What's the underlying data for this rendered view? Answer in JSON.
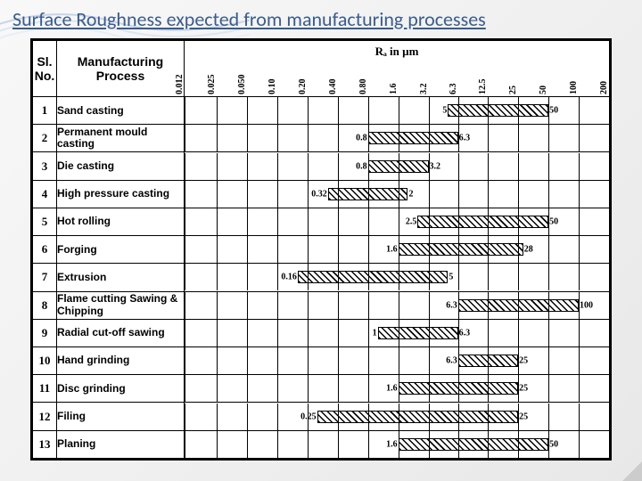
{
  "title": "Surface Roughness expected from manufacturing processes",
  "title_color": "#3b5c8c",
  "background_gradient": [
    "#f8f8f8",
    "#e8e8e8"
  ],
  "table": {
    "headers": {
      "sl": "Sl. No.",
      "process": "Manufacturing Process",
      "ra": "Rₐ in µm"
    },
    "ra_scale": {
      "type": "log",
      "ticks": [
        0.012,
        0.025,
        0.05,
        0.1,
        0.2,
        0.4,
        0.8,
        1.6,
        3.2,
        6.3,
        12.5,
        25,
        50,
        100,
        200
      ],
      "tick_labels": [
        "0.012",
        "0.025",
        "0.050",
        "0.10",
        "0.20",
        "0.40",
        "0.80",
        "1.6",
        "3.2",
        "6.3",
        "12.5",
        "25",
        "50",
        "100",
        "200"
      ],
      "min": 0.012,
      "max": 200
    },
    "rows": [
      {
        "no": 1,
        "name": "Sand casting",
        "from": 5,
        "to": 50,
        "label_left": "5",
        "label_right": "50"
      },
      {
        "no": 2,
        "name": "Permanent mould casting",
        "from": 0.8,
        "to": 6.3,
        "label_left": "0.8",
        "label_right": "6.3"
      },
      {
        "no": 3,
        "name": "Die casting",
        "from": 0.8,
        "to": 3.2,
        "label_left": "0.8",
        "label_right": "3.2"
      },
      {
        "no": 4,
        "name": "High pressure casting",
        "from": 0.32,
        "to": 2,
        "label_left": "0.32",
        "label_right": "2"
      },
      {
        "no": 5,
        "name": "Hot rolling",
        "from": 2.5,
        "to": 50,
        "label_left": "2.5",
        "label_right": "50"
      },
      {
        "no": 6,
        "name": "Forging",
        "from": 1.6,
        "to": 28,
        "label_left": "1.6",
        "label_right": "28"
      },
      {
        "no": 7,
        "name": "Extrusion",
        "from": 0.16,
        "to": 5,
        "label_left": "0.16",
        "label_right": "5"
      },
      {
        "no": 8,
        "name": "Flame cutting Sawing & Chipping",
        "from": 6.3,
        "to": 100,
        "label_left": "6.3",
        "label_right": "100"
      },
      {
        "no": 9,
        "name": "Radial cut-off sawing",
        "from": 1,
        "to": 6.3,
        "label_left": "1",
        "label_right": "6.3"
      },
      {
        "no": 10,
        "name": "Hand grinding",
        "from": 6.3,
        "to": 25,
        "label_left": "6.3",
        "label_right": "25"
      },
      {
        "no": 11,
        "name": "Disc grinding",
        "from": 1.6,
        "to": 25,
        "label_left": "1.6",
        "label_right": "25"
      },
      {
        "no": 12,
        "name": "Filing",
        "from": 0.25,
        "to": 25,
        "label_left": "0.25",
        "label_right": "25"
      },
      {
        "no": 13,
        "name": "Planing",
        "from": 1.6,
        "to": 50,
        "label_left": "1.6",
        "label_right": "50"
      }
    ],
    "bar_style": {
      "fill": "hatch",
      "border_color": "#000000",
      "border_width": 1.5
    },
    "border_color": "#000000",
    "header_fontsize": 14,
    "row_fontsize": 12,
    "tick_fontsize": 10
  }
}
